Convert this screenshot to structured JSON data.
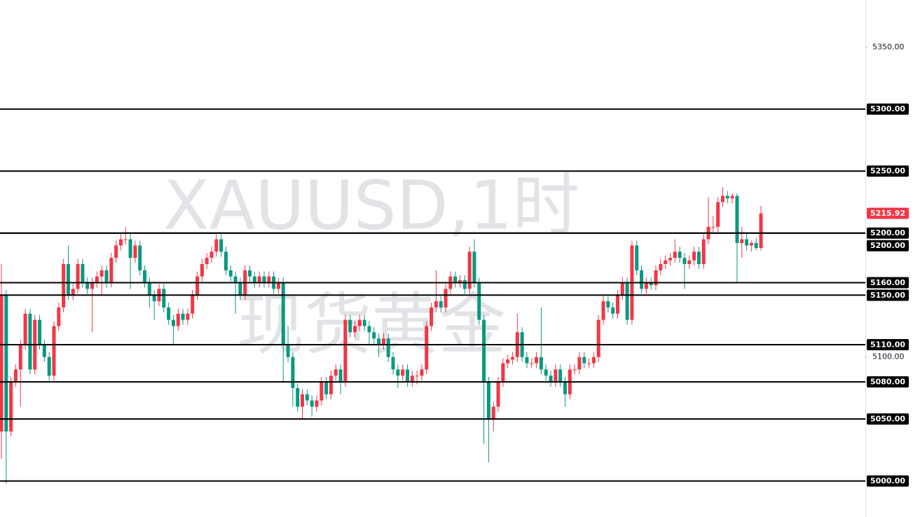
{
  "chart_data": {
    "type": "candlestick",
    "watermark": [
      "XAUUSD,1时",
      "现货黄金"
    ],
    "ylim": [
      4971,
      5388
    ],
    "yticks": [
      {
        "value": 5350,
        "label": "5350.00"
      },
      {
        "value": 5100,
        "label": "5100.00"
      }
    ],
    "levels": [
      {
        "value": 5300,
        "label": "5300.00"
      },
      {
        "value": 5250,
        "label": "5250.00"
      },
      {
        "value": 5200,
        "label": "5200.00"
      },
      {
        "value": 5200,
        "label": "5200.00"
      },
      {
        "value": 5160,
        "label": "5160.00"
      },
      {
        "value": 5150,
        "label": "5150.00"
      },
      {
        "value": 5110,
        "label": "5110.00"
      },
      {
        "value": 5080,
        "label": "5080.00"
      },
      {
        "value": 5050,
        "label": "5050.00"
      },
      {
        "value": 5000,
        "label": "5000.00"
      }
    ],
    "last_price": 5215.92,
    "up_color": "#f23645",
    "down_color": "#089981",
    "ohlc": [
      [
        5040,
        5175,
        5018,
        5150
      ],
      [
        5150,
        5154,
        4998,
        5040
      ],
      [
        5040,
        5084,
        5036,
        5080
      ],
      [
        5080,
        5094,
        5076,
        5090
      ],
      [
        5090,
        5114,
        5060,
        5110
      ],
      [
        5110,
        5139,
        5106,
        5135
      ],
      [
        5135,
        5139,
        5086,
        5090
      ],
      [
        5090,
        5134,
        5086,
        5130
      ],
      [
        5130,
        5134,
        5106,
        5110
      ],
      [
        5110,
        5114,
        5096,
        5100
      ],
      [
        5100,
        5104,
        5081,
        5085
      ],
      [
        5085,
        5129,
        5081,
        5125
      ],
      [
        5125,
        5144,
        5121,
        5140
      ],
      [
        5140,
        5179,
        5136,
        5175
      ],
      [
        5175,
        5190,
        5146,
        5150
      ],
      [
        5150,
        5159,
        5146,
        5155
      ],
      [
        5155,
        5179,
        5151,
        5175
      ],
      [
        5175,
        5179,
        5156,
        5160
      ],
      [
        5160,
        5164,
        5151,
        5155
      ],
      [
        5155,
        5164,
        5120,
        5160
      ],
      [
        5160,
        5169,
        5156,
        5165
      ],
      [
        5165,
        5174,
        5150,
        5170
      ],
      [
        5170,
        5174,
        5156,
        5160
      ],
      [
        5160,
        5184,
        5156,
        5180
      ],
      [
        5180,
        5194,
        5176,
        5190
      ],
      [
        5190,
        5199,
        5186,
        5195
      ],
      [
        5195,
        5205,
        5191,
        5195
      ],
      [
        5195,
        5199,
        5155,
        5180
      ],
      [
        5180,
        5194,
        5176,
        5190
      ],
      [
        5190,
        5194,
        5166,
        5170
      ],
      [
        5170,
        5174,
        5156,
        5160
      ],
      [
        5160,
        5164,
        5140,
        5150
      ],
      [
        5150,
        5154,
        5130,
        5145
      ],
      [
        5145,
        5159,
        5141,
        5155
      ],
      [
        5155,
        5159,
        5136,
        5140
      ],
      [
        5140,
        5144,
        5126,
        5130
      ],
      [
        5130,
        5134,
        5110,
        5125
      ],
      [
        5125,
        5139,
        5121,
        5135
      ],
      [
        5135,
        5139,
        5126,
        5130
      ],
      [
        5130,
        5139,
        5126,
        5135
      ],
      [
        5135,
        5154,
        5131,
        5150
      ],
      [
        5150,
        5169,
        5146,
        5165
      ],
      [
        5165,
        5179,
        5161,
        5175
      ],
      [
        5175,
        5184,
        5171,
        5180
      ],
      [
        5180,
        5189,
        5176,
        5185
      ],
      [
        5185,
        5199,
        5181,
        5195
      ],
      [
        5195,
        5199,
        5181,
        5185
      ],
      [
        5185,
        5189,
        5166,
        5170
      ],
      [
        5170,
        5174,
        5161,
        5165
      ],
      [
        5165,
        5169,
        5135,
        5160
      ],
      [
        5160,
        5164,
        5146,
        5150
      ],
      [
        5150,
        5174,
        5146,
        5170
      ],
      [
        5170,
        5174,
        5161,
        5165
      ],
      [
        5165,
        5169,
        5156,
        5160
      ],
      [
        5160,
        5169,
        5156,
        5165
      ],
      [
        5165,
        5169,
        5156,
        5160
      ],
      [
        5160,
        5169,
        5156,
        5165
      ],
      [
        5165,
        5169,
        5151,
        5155
      ],
      [
        5155,
        5164,
        5151,
        5160
      ],
      [
        5160,
        5164,
        5080,
        5110
      ],
      [
        5110,
        5125,
        5096,
        5100
      ],
      [
        5100,
        5104,
        5060,
        5075
      ],
      [
        5075,
        5079,
        5056,
        5060
      ],
      [
        5060,
        5074,
        5050,
        5070
      ],
      [
        5070,
        5074,
        5061,
        5065
      ],
      [
        5065,
        5069,
        5052,
        5060
      ],
      [
        5060,
        5069,
        5056,
        5065
      ],
      [
        5065,
        5084,
        5061,
        5080
      ],
      [
        5080,
        5084,
        5066,
        5070
      ],
      [
        5070,
        5089,
        5066,
        5085
      ],
      [
        5085,
        5094,
        5081,
        5090
      ],
      [
        5090,
        5094,
        5070,
        5080
      ],
      [
        5080,
        5134,
        5076,
        5130
      ],
      [
        5130,
        5134,
        5116,
        5120
      ],
      [
        5120,
        5129,
        5116,
        5125
      ],
      [
        5125,
        5134,
        5121,
        5130
      ],
      [
        5130,
        5134,
        5121,
        5125
      ],
      [
        5125,
        5129,
        5110,
        5120
      ],
      [
        5120,
        5124,
        5111,
        5115
      ],
      [
        5115,
        5119,
        5100,
        5110
      ],
      [
        5110,
        5119,
        5106,
        5115
      ],
      [
        5115,
        5119,
        5096,
        5100
      ],
      [
        5100,
        5104,
        5086,
        5090
      ],
      [
        5090,
        5094,
        5075,
        5085
      ],
      [
        5085,
        5094,
        5081,
        5090
      ],
      [
        5090,
        5094,
        5076,
        5080
      ],
      [
        5080,
        5089,
        5076,
        5085
      ],
      [
        5085,
        5089,
        5078,
        5085
      ],
      [
        5085,
        5094,
        5081,
        5090
      ],
      [
        5090,
        5129,
        5086,
        5125
      ],
      [
        5125,
        5144,
        5121,
        5140
      ],
      [
        5140,
        5170,
        5136,
        5145
      ],
      [
        5145,
        5149,
        5136,
        5140
      ],
      [
        5140,
        5159,
        5136,
        5155
      ],
      [
        5155,
        5169,
        5151,
        5165
      ],
      [
        5165,
        5169,
        5156,
        5160
      ],
      [
        5160,
        5166,
        5156,
        5162
      ],
      [
        5162,
        5166,
        5151,
        5155
      ],
      [
        5155,
        5189,
        5151,
        5185
      ],
      [
        5185,
        5195,
        5156,
        5160
      ],
      [
        5160,
        5164,
        5126,
        5130
      ],
      [
        5130,
        5134,
        5030,
        5080
      ],
      [
        5080,
        5084,
        5015,
        5050
      ],
      [
        5050,
        5064,
        5040,
        5060
      ],
      [
        5060,
        5084,
        5056,
        5080
      ],
      [
        5080,
        5099,
        5076,
        5095
      ],
      [
        5095,
        5102,
        5091,
        5098
      ],
      [
        5098,
        5104,
        5094,
        5100
      ],
      [
        5100,
        5135,
        5096,
        5120
      ],
      [
        5120,
        5124,
        5096,
        5100
      ],
      [
        5100,
        5104,
        5091,
        5095
      ],
      [
        5095,
        5099,
        5091,
        5095
      ],
      [
        5095,
        5104,
        5091,
        5100
      ],
      [
        5100,
        5140,
        5086,
        5090
      ],
      [
        5090,
        5094,
        5081,
        5085
      ],
      [
        5085,
        5089,
        5076,
        5080
      ],
      [
        5080,
        5094,
        5076,
        5090
      ],
      [
        5090,
        5094,
        5076,
        5080
      ],
      [
        5080,
        5084,
        5060,
        5070
      ],
      [
        5070,
        5094,
        5066,
        5090
      ],
      [
        5090,
        5094,
        5086,
        5090
      ],
      [
        5090,
        5104,
        5086,
        5100
      ],
      [
        5100,
        5104,
        5091,
        5095
      ],
      [
        5095,
        5099,
        5091,
        5095
      ],
      [
        5095,
        5104,
        5091,
        5100
      ],
      [
        5100,
        5134,
        5096,
        5130
      ],
      [
        5130,
        5149,
        5126,
        5145
      ],
      [
        5145,
        5149,
        5136,
        5140
      ],
      [
        5140,
        5144,
        5131,
        5135
      ],
      [
        5135,
        5154,
        5131,
        5150
      ],
      [
        5150,
        5164,
        5146,
        5160
      ],
      [
        5160,
        5164,
        5126,
        5130
      ],
      [
        5130,
        5194,
        5126,
        5190
      ],
      [
        5190,
        5194,
        5166,
        5170
      ],
      [
        5170,
        5174,
        5151,
        5155
      ],
      [
        5155,
        5164,
        5151,
        5160
      ],
      [
        5160,
        5164,
        5154,
        5158
      ],
      [
        5158,
        5174,
        5154,
        5170
      ],
      [
        5170,
        5179,
        5166,
        5175
      ],
      [
        5175,
        5182,
        5171,
        5178
      ],
      [
        5178,
        5184,
        5174,
        5180
      ],
      [
        5180,
        5195,
        5176,
        5185
      ],
      [
        5185,
        5189,
        5176,
        5180
      ],
      [
        5180,
        5184,
        5155,
        5175
      ],
      [
        5175,
        5182,
        5171,
        5178
      ],
      [
        5178,
        5189,
        5174,
        5185
      ],
      [
        5185,
        5189,
        5171,
        5175
      ],
      [
        5175,
        5199,
        5171,
        5195
      ],
      [
        5195,
        5229,
        5191,
        5205
      ],
      [
        5205,
        5214,
        5201,
        5205
      ],
      [
        5205,
        5229,
        5201,
        5225
      ],
      [
        5225,
        5237,
        5221,
        5230
      ],
      [
        5230,
        5234,
        5224,
        5228
      ],
      [
        5228,
        5232,
        5224,
        5230
      ],
      [
        5230,
        5232,
        5160,
        5192
      ],
      [
        5192,
        5205,
        5180,
        5195
      ],
      [
        5195,
        5199,
        5186,
        5190
      ],
      [
        5190,
        5194,
        5185,
        5192
      ],
      [
        5192,
        5196,
        5186,
        5188
      ],
      [
        5188,
        5222,
        5186,
        5215.92
      ]
    ]
  }
}
